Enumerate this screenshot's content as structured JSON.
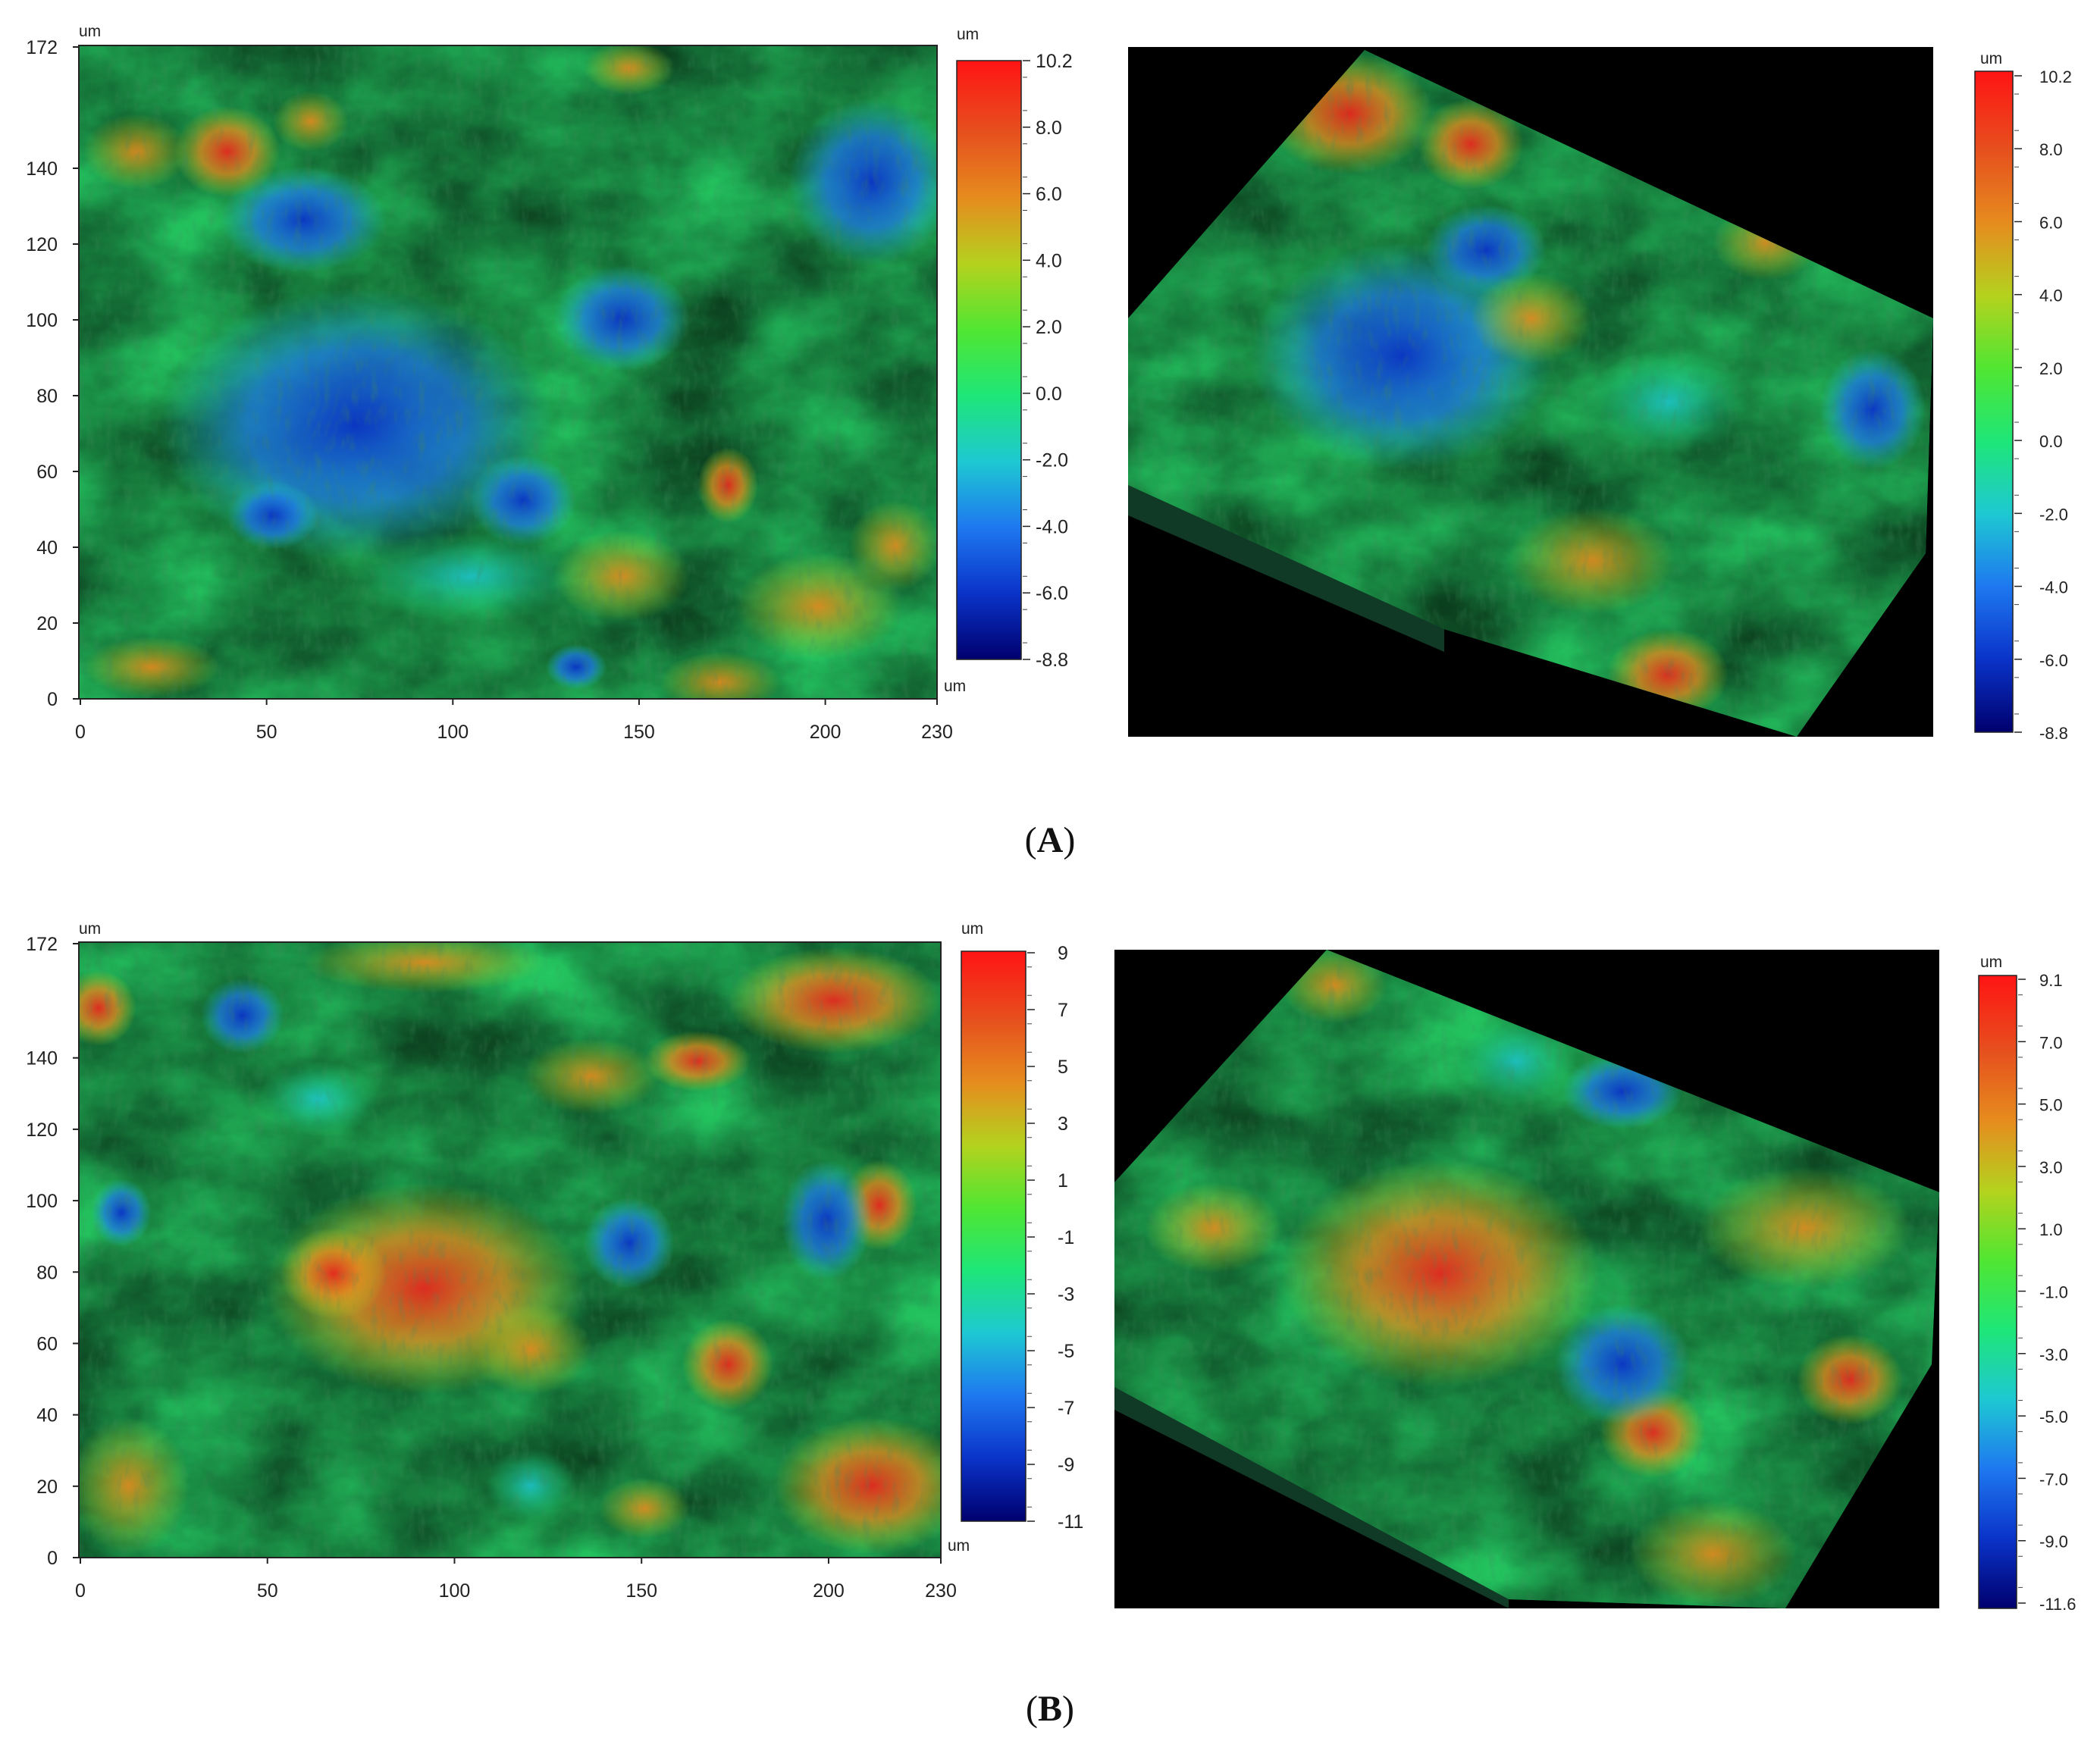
{
  "figures": [
    {
      "panel_label": "A",
      "map2d": {
        "unit_top": "um",
        "unit_right": "um",
        "y_ticks": [
          "0",
          "20",
          "40",
          "60",
          "80",
          "100",
          "120",
          "140",
          "172"
        ],
        "x_ticks": [
          "0",
          "50",
          "100",
          "150",
          "200",
          "230"
        ],
        "colorbar": {
          "unit": "um",
          "labels": [
            "10.2",
            "8.0",
            "6.0",
            "4.0",
            "2.0",
            "0.0",
            "-2.0",
            "-4.0",
            "-6.0",
            "-8.8"
          ]
        }
      },
      "map3d": {
        "colorbar": {
          "unit": "um",
          "labels": [
            "10.2",
            "8.0",
            "6.0",
            "4.0",
            "2.0",
            "0.0",
            "-2.0",
            "-4.0",
            "-6.0",
            "-8.8"
          ]
        }
      }
    },
    {
      "panel_label": "B",
      "map2d": {
        "unit_top": "um",
        "unit_right": "um",
        "y_ticks": [
          "0",
          "20",
          "40",
          "60",
          "80",
          "100",
          "120",
          "140",
          "172"
        ],
        "x_ticks": [
          "0",
          "50",
          "100",
          "150",
          "200",
          "230"
        ],
        "colorbar": {
          "unit": "um",
          "labels": [
            "9",
            "7",
            "5",
            "3",
            "1",
            "-1",
            "-3",
            "-5",
            "-7",
            "-9",
            "-11"
          ]
        }
      },
      "map3d": {
        "colorbar": {
          "unit": "um",
          "labels": [
            "9.1",
            "7.0",
            "5.0",
            "3.0",
            "1.0",
            "-1.0",
            "-3.0",
            "-5.0",
            "-7.0",
            "-9.0",
            "-11.6"
          ]
        }
      }
    }
  ],
  "colormap": [
    "#00006e",
    "#0a33c8",
    "#1e78f0",
    "#1ec8d2",
    "#1ee678",
    "#50e632",
    "#b4d21e",
    "#e68c1e",
    "#e6501e",
    "#ff1414"
  ]
}
